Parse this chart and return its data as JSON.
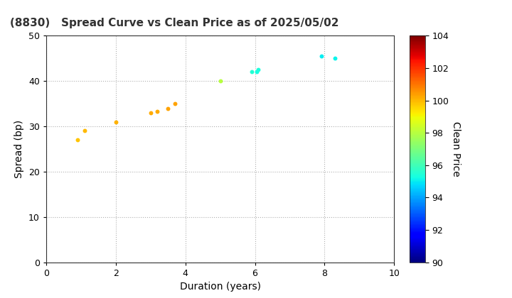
{
  "title": "(8830)   Spread Curve vs Clean Price as of 2025/05/02",
  "xlabel": "Duration (years)",
  "ylabel": "Spread (bp)",
  "colorbar_label": "Clean Price",
  "xlim": [
    0,
    10
  ],
  "ylim": [
    0,
    50
  ],
  "xticks": [
    0,
    2,
    4,
    6,
    8,
    10
  ],
  "yticks": [
    0,
    10,
    20,
    30,
    40,
    50
  ],
  "colorbar_min": 90,
  "colorbar_max": 104,
  "colorbar_ticks": [
    90,
    92,
    94,
    96,
    98,
    100,
    102,
    104
  ],
  "points": [
    {
      "duration": 0.9,
      "spread": 27,
      "price": 99.8
    },
    {
      "duration": 1.1,
      "spread": 29,
      "price": 100.0
    },
    {
      "duration": 2.0,
      "spread": 31,
      "price": 100.1
    },
    {
      "duration": 3.0,
      "spread": 33,
      "price": 100.2
    },
    {
      "duration": 3.2,
      "spread": 33.3,
      "price": 100.2
    },
    {
      "duration": 3.5,
      "spread": 34,
      "price": 100.3
    },
    {
      "duration": 3.7,
      "spread": 35,
      "price": 100.3
    },
    {
      "duration": 5.0,
      "spread": 40,
      "price": 98.0
    },
    {
      "duration": 5.9,
      "spread": 42,
      "price": 95.5
    },
    {
      "duration": 6.05,
      "spread": 42,
      "price": 95.3
    },
    {
      "duration": 6.1,
      "spread": 42.5,
      "price": 95.4
    },
    {
      "duration": 7.9,
      "spread": 45.5,
      "price": 95.0
    },
    {
      "duration": 8.3,
      "spread": 45,
      "price": 95.1
    }
  ],
  "marker_size": 18,
  "bg_color": "#ffffff",
  "grid_color": "#b0b0b0",
  "title_fontsize": 11,
  "axis_fontsize": 10,
  "tick_fontsize": 9
}
